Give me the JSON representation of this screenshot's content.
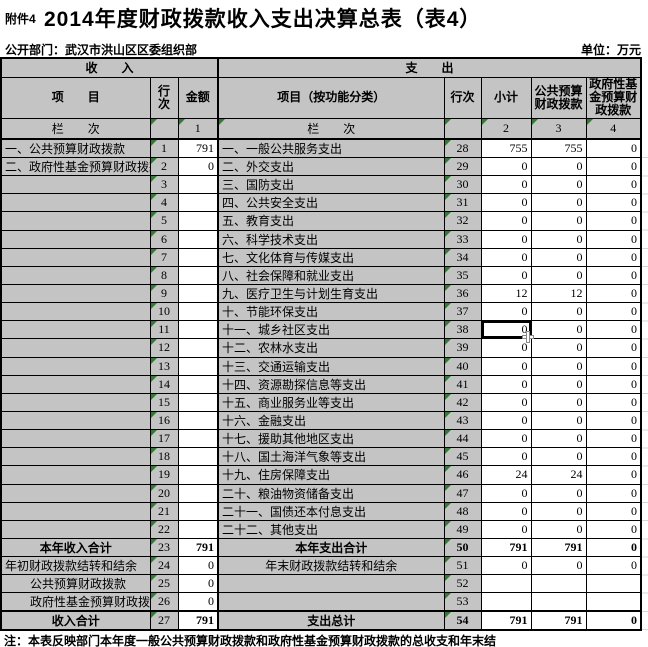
{
  "meta": {
    "attachment_label": "附件4",
    "title": "2014年度财政拨款收入支出决算总表（表4）",
    "department_label": "公开部门：武汉市洪山区区委组织部",
    "unit_label": "单位：万元",
    "footnote": "注：本表反映部门本年度一般公共预算财政拨款和政府性基金预算财政拨款的总收支和年末结"
  },
  "colors": {
    "cell_gray": "#c4c4c4",
    "value_cell_white": "#ffffff",
    "grid_line": "#000000",
    "error_indicator_green": "#2e7d32",
    "selection_border": "#000000"
  },
  "icons": {
    "error_indicator": "green-triangle-icon",
    "cursor": "excel-plus-cursor-icon"
  },
  "table": {
    "headers": {
      "income_section": "收　　入",
      "expense_section": "支　　出",
      "item": "项　　目",
      "line_no_income": "行次",
      "amount": "金额",
      "item_functional": "项目（按功能分类）",
      "line_no_expense": "行次",
      "subtotal": "小计",
      "public_budget": "公共预算财政拨款",
      "gov_fund_budget": "政府性基金预算财政拨款",
      "rank_label_income": "栏　　次",
      "rank_label_expense": "栏　　次",
      "rank_col_amount": "1",
      "rank_col_subtotal": "2",
      "rank_col_public": "3",
      "rank_col_govfund": "4"
    },
    "selected_cell": {
      "row_line": "38",
      "column": "小计",
      "value": "0"
    },
    "rows": [
      {
        "left": {
          "label": "一、公共预算财政拨款",
          "line": "1",
          "amount": "791"
        },
        "right": {
          "label": "一、一般公共服务支出",
          "line": "28",
          "subtotal": "755",
          "public": "755",
          "govfund": "0"
        }
      },
      {
        "left": {
          "label": "二、政府性基金预算财政拨款",
          "line": "2",
          "amount": "0"
        },
        "right": {
          "label": "二、外交支出",
          "line": "29",
          "subtotal": "0",
          "public": "0",
          "govfund": "0"
        }
      },
      {
        "left": {
          "label": "",
          "line": "3",
          "amount": ""
        },
        "right": {
          "label": "三、国防支出",
          "line": "30",
          "subtotal": "0",
          "public": "0",
          "govfund": "0"
        }
      },
      {
        "left": {
          "label": "",
          "line": "4",
          "amount": ""
        },
        "right": {
          "label": "四、公共安全支出",
          "line": "31",
          "subtotal": "0",
          "public": "0",
          "govfund": "0"
        }
      },
      {
        "left": {
          "label": "",
          "line": "5",
          "amount": ""
        },
        "right": {
          "label": "五、教育支出",
          "line": "32",
          "subtotal": "0",
          "public": "0",
          "govfund": "0"
        }
      },
      {
        "left": {
          "label": "",
          "line": "6",
          "amount": ""
        },
        "right": {
          "label": "六、科学技术支出",
          "line": "33",
          "subtotal": "0",
          "public": "0",
          "govfund": "0"
        }
      },
      {
        "left": {
          "label": "",
          "line": "7",
          "amount": ""
        },
        "right": {
          "label": "七、文化体育与传媒支出",
          "line": "34",
          "subtotal": "0",
          "public": "0",
          "govfund": "0"
        }
      },
      {
        "left": {
          "label": "",
          "line": "8",
          "amount": ""
        },
        "right": {
          "label": "八、社会保障和就业支出",
          "line": "35",
          "subtotal": "0",
          "public": "0",
          "govfund": "0"
        }
      },
      {
        "left": {
          "label": "",
          "line": "9",
          "amount": ""
        },
        "right": {
          "label": "九、医疗卫生与计划生育支出",
          "line": "36",
          "subtotal": "12",
          "public": "12",
          "govfund": "0"
        }
      },
      {
        "left": {
          "label": "",
          "line": "10",
          "amount": ""
        },
        "right": {
          "label": "十、节能环保支出",
          "line": "37",
          "subtotal": "0",
          "public": "0",
          "govfund": "0"
        }
      },
      {
        "left": {
          "label": "",
          "line": "11",
          "amount": ""
        },
        "right": {
          "label": "十一、城乡社区支出",
          "line": "38",
          "subtotal": "0",
          "public": "0",
          "govfund": "0"
        },
        "selected": true
      },
      {
        "left": {
          "label": "",
          "line": "12",
          "amount": ""
        },
        "right": {
          "label": "十二、农林水支出",
          "line": "39",
          "subtotal": "0",
          "public": "0",
          "govfund": "0"
        }
      },
      {
        "left": {
          "label": "",
          "line": "13",
          "amount": ""
        },
        "right": {
          "label": "十三、交通运输支出",
          "line": "40",
          "subtotal": "0",
          "public": "0",
          "govfund": "0"
        }
      },
      {
        "left": {
          "label": "",
          "line": "14",
          "amount": ""
        },
        "right": {
          "label": "十四、资源勘探信息等支出",
          "line": "41",
          "subtotal": "0",
          "public": "0",
          "govfund": "0"
        }
      },
      {
        "left": {
          "label": "",
          "line": "15",
          "amount": ""
        },
        "right": {
          "label": "十五、商业服务业等支出",
          "line": "42",
          "subtotal": "0",
          "public": "0",
          "govfund": "0"
        }
      },
      {
        "left": {
          "label": "",
          "line": "16",
          "amount": ""
        },
        "right": {
          "label": "十六、金融支出",
          "line": "43",
          "subtotal": "0",
          "public": "0",
          "govfund": "0"
        }
      },
      {
        "left": {
          "label": "",
          "line": "17",
          "amount": ""
        },
        "right": {
          "label": "十七、援助其他地区支出",
          "line": "44",
          "subtotal": "0",
          "public": "0",
          "govfund": "0"
        }
      },
      {
        "left": {
          "label": "",
          "line": "18",
          "amount": ""
        },
        "right": {
          "label": "十八、国土海洋气象等支出",
          "line": "45",
          "subtotal": "0",
          "public": "0",
          "govfund": "0"
        }
      },
      {
        "left": {
          "label": "",
          "line": "19",
          "amount": ""
        },
        "right": {
          "label": "十九、住房保障支出",
          "line": "46",
          "subtotal": "24",
          "public": "24",
          "govfund": "0"
        }
      },
      {
        "left": {
          "label": "",
          "line": "20",
          "amount": ""
        },
        "right": {
          "label": "二十、粮油物资储备支出",
          "line": "47",
          "subtotal": "0",
          "public": "0",
          "govfund": "0"
        }
      },
      {
        "left": {
          "label": "",
          "line": "21",
          "amount": ""
        },
        "right": {
          "label": "二十一、国债还本付息支出",
          "line": "48",
          "subtotal": "0",
          "public": "0",
          "govfund": "0"
        }
      },
      {
        "left": {
          "label": "",
          "line": "22",
          "amount": ""
        },
        "right": {
          "label": "二十二、其他支出",
          "line": "49",
          "subtotal": "0",
          "public": "0",
          "govfund": "0"
        }
      },
      {
        "left": {
          "label": "本年收入合计",
          "line": "23",
          "amount": "791",
          "style": "sum"
        },
        "right": {
          "label": "本年支出合计",
          "line": "50",
          "subtotal": "791",
          "public": "791",
          "govfund": "0",
          "style": "sum"
        }
      },
      {
        "left": {
          "label": "年初财政拨款结转和结余",
          "line": "24",
          "amount": "0"
        },
        "right": {
          "label": "年末财政拨款结转和结余",
          "line": "51",
          "subtotal": "0",
          "public": "0",
          "govfund": "0",
          "style": "center"
        }
      },
      {
        "left": {
          "label": "公共预算财政拨款",
          "line": "25",
          "amount": "0",
          "style": "indent"
        },
        "right": {
          "label": "",
          "line": "52",
          "subtotal": "",
          "public": "",
          "govfund": ""
        }
      },
      {
        "left": {
          "label": "政府性基金预算财政拨款",
          "line": "26",
          "amount": "0",
          "style": "indent"
        },
        "right": {
          "label": "",
          "line": "53",
          "subtotal": "",
          "public": "",
          "govfund": ""
        }
      },
      {
        "left": {
          "label": "收入合计",
          "line": "27",
          "amount": "791",
          "style": "sum"
        },
        "right": {
          "label": "支出总计",
          "line": "54",
          "subtotal": "791",
          "public": "791",
          "govfund": "0",
          "style": "sum"
        }
      }
    ]
  }
}
